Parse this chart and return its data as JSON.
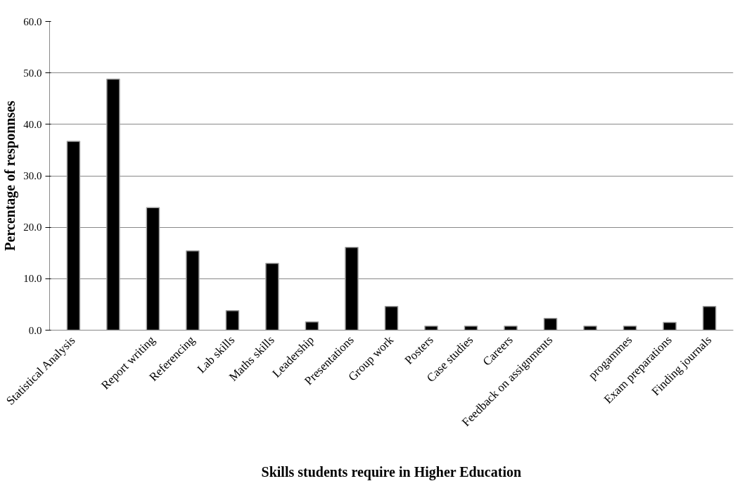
{
  "chart_data": {
    "type": "bar",
    "xlabel": "Skills students require in Higher Education",
    "ylabel": "Percentage of responnses",
    "categories": [
      "Statistical Analysis",
      null,
      "Report writing",
      "Referencing",
      "Lab skills",
      "Maths skills",
      "Leadership",
      "Presentations",
      "Group work",
      "Posters",
      "Case studies",
      "Careers",
      "Feedback on assignments",
      null,
      "progammes",
      "Exam preparations",
      "Finding journals"
    ],
    "values": [
      36.7,
      48.8,
      23.8,
      15.4,
      3.8,
      13.0,
      1.6,
      16.1,
      4.6,
      0.8,
      0.8,
      0.8,
      2.3,
      0.8,
      0.8,
      1.5,
      4.6
    ],
    "color": "#000000",
    "ylim": [
      0,
      60
    ],
    "yticks": [
      {
        "value": 0,
        "label": "0.0"
      },
      {
        "value": 10,
        "label": "10.0"
      },
      {
        "value": 20,
        "label": "20.0"
      },
      {
        "value": 30,
        "label": "30.0"
      },
      {
        "value": 40,
        "label": "40.0"
      },
      {
        "value": 50,
        "label": "50.0"
      },
      {
        "value": 60,
        "label": "60.0"
      }
    ],
    "grid": "y"
  }
}
